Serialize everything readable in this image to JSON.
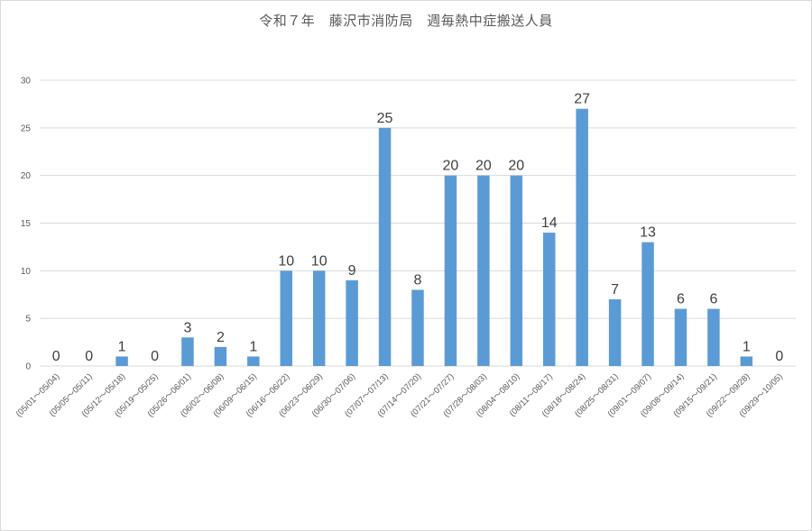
{
  "chart_data": {
    "type": "bar",
    "title": "令和７年　藤沢市消防局　週毎熱中症搬送人員",
    "categories": [
      "(05/01～05/04)",
      "(05/05～05/11)",
      "(05/12～05/18)",
      "(05/19～05/25)",
      "(05/26～06/01)",
      "(06/02～06/08)",
      "(06/09～06/15)",
      "(06/16～06/22)",
      "(06/23～06/29)",
      "(06/30～07/06)",
      "(07/07～07/13)",
      "(07/14～07/20)",
      "(07/21～07/27)",
      "(07/28～08/03)",
      "(08/04～08/10)",
      "(08/11～08/17)",
      "(08/18～08/24)",
      "(08/25～08/31)",
      "(09/01～09/07)",
      "(09/08～09/14)",
      "(09/15～09/21)",
      "(09/22～09/28)",
      "(09/29～10/05)"
    ],
    "values": [
      0,
      0,
      1,
      0,
      3,
      2,
      1,
      10,
      10,
      9,
      25,
      8,
      20,
      20,
      20,
      14,
      27,
      7,
      13,
      6,
      6,
      1,
      0
    ],
    "ylim": [
      0,
      30
    ],
    "yticks": [
      0,
      5,
      10,
      15,
      20,
      25,
      30
    ],
    "grid": true,
    "legend": "none",
    "bar_color": "#5b9bd5",
    "grid_color": "#d9d9d9",
    "xlabel": "",
    "ylabel": ""
  }
}
